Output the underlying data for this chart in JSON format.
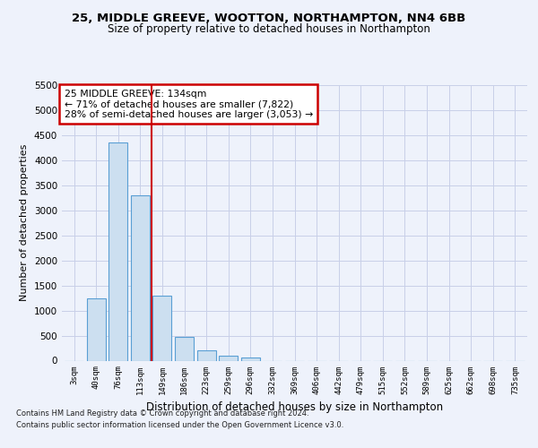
{
  "title1": "25, MIDDLE GREEVE, WOOTTON, NORTHAMPTON, NN4 6BB",
  "title2": "Size of property relative to detached houses in Northampton",
  "xlabel": "Distribution of detached houses by size in Northampton",
  "ylabel": "Number of detached properties",
  "footer1": "Contains HM Land Registry data © Crown copyright and database right 2024.",
  "footer2": "Contains public sector information licensed under the Open Government Licence v3.0.",
  "annotation_line1": "25 MIDDLE GREEVE: 134sqm",
  "annotation_line2": "← 71% of detached houses are smaller (7,822)",
  "annotation_line3": "28% of semi-detached houses are larger (3,053) →",
  "bar_color": "#ccdff0",
  "bar_edge_color": "#5a9fd4",
  "vline_color": "#cc0000",
  "vline_x": 3.5,
  "categories": [
    "3sqm",
    "40sqm",
    "76sqm",
    "113sqm",
    "149sqm",
    "186sqm",
    "223sqm",
    "259sqm",
    "296sqm",
    "332sqm",
    "369sqm",
    "406sqm",
    "442sqm",
    "479sqm",
    "515sqm",
    "552sqm",
    "589sqm",
    "625sqm",
    "662sqm",
    "698sqm",
    "735sqm"
  ],
  "values": [
    0,
    1250,
    4350,
    3300,
    1300,
    475,
    200,
    100,
    65,
    0,
    0,
    0,
    0,
    0,
    0,
    0,
    0,
    0,
    0,
    0,
    0
  ],
  "ylim": [
    0,
    5500
  ],
  "yticks": [
    0,
    500,
    1000,
    1500,
    2000,
    2500,
    3000,
    3500,
    4000,
    4500,
    5000,
    5500
  ],
  "background_color": "#eef2fb",
  "plot_bg_color": "#eef2fb",
  "grid_color": "#c8cfe8"
}
